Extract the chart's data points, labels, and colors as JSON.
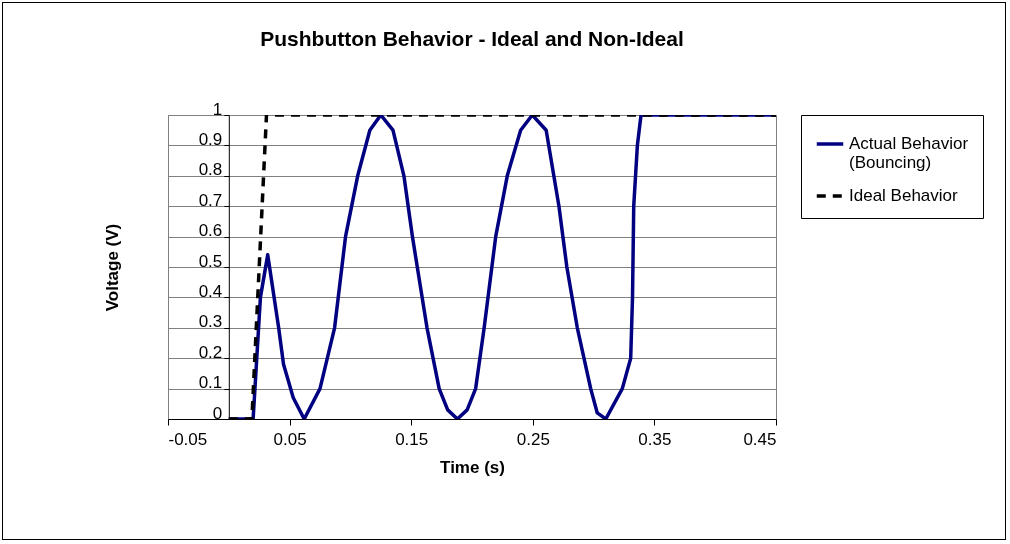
{
  "chart_data": {
    "type": "line",
    "title": "Pushbutton Behavior - Ideal and Non-Ideal",
    "xlabel": "Time (s)",
    "ylabel": "Voltage (V)",
    "xlim": [
      -0.05,
      0.45
    ],
    "xticks": [
      -0.05,
      0.05,
      0.15,
      0.25,
      0.35,
      0.45
    ],
    "ylim": [
      0,
      1
    ],
    "yticks": [
      0,
      0.1,
      0.2,
      0.3,
      0.4,
      0.5,
      0.6,
      0.7,
      0.8,
      0.9,
      1
    ],
    "grid": "y",
    "legend": "right",
    "series": [
      {
        "name": "Actual Behavior (Bouncing)",
        "color": "#000080",
        "line_style": "solid",
        "x": [
          0,
          0.02,
          0.026,
          0.032,
          0.041,
          0.045,
          0.053,
          0.062,
          0.075,
          0.087,
          0.096,
          0.106,
          0.116,
          0.125,
          0.135,
          0.144,
          0.151,
          0.157,
          0.163,
          0.173,
          0.18,
          0.188,
          0.196,
          0.203,
          0.21,
          0.2195,
          0.229,
          0.24,
          0.2496,
          0.261,
          0.2715,
          0.278,
          0.2866,
          0.2976,
          0.303,
          0.31,
          0.3236,
          0.3305,
          0.332,
          0.333,
          0.336,
          0.339,
          0.45
        ],
        "values": [
          0,
          0,
          0.4,
          0.54,
          0.3,
          0.18,
          0.07,
          0,
          0.1,
          0.3,
          0.6,
          0.8,
          0.95,
          1,
          0.95,
          0.8,
          0.6,
          0.45,
          0.3,
          0.1,
          0.03,
          0,
          0.03,
          0.1,
          0.3,
          0.6,
          0.8,
          0.95,
          1,
          0.95,
          0.7,
          0.5,
          0.3,
          0.1,
          0.02,
          0,
          0.1,
          0.2,
          0.4,
          0.7,
          0.9,
          1,
          1
        ]
      },
      {
        "name": "Ideal Behavior",
        "color": "#000000",
        "line_style": "dashed",
        "x": [
          0,
          0.019,
          0.031,
          0.45
        ],
        "values": [
          0,
          0,
          1,
          1
        ]
      }
    ]
  }
}
